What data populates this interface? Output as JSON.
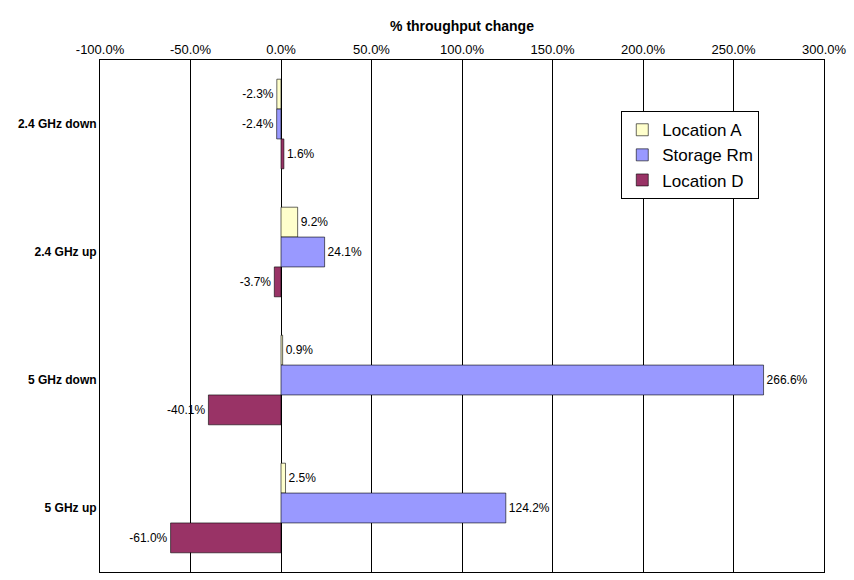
{
  "chart_data": {
    "type": "bar",
    "orientation": "horizontal",
    "xlabel": "% throughput change",
    "categories": [
      "2.4 GHz down",
      "2.4 GHz up",
      "5 GHz down",
      "5 GHz up"
    ],
    "series": [
      {
        "name": "Location A",
        "color": "#ffffcc",
        "values": [
          -2.3,
          9.2,
          0.9,
          2.5
        ],
        "value_labels": [
          "-2.3%",
          "9.2%",
          "0.9%",
          "2.5%"
        ]
      },
      {
        "name": "Storage Rm",
        "color": "#9999ff",
        "values": [
          -2.4,
          24.1,
          266.6,
          124.2
        ],
        "value_labels": [
          "-2.4%",
          "24.1%",
          "266.6%",
          "124.2%"
        ]
      },
      {
        "name": "Location D",
        "color": "#993366",
        "values": [
          1.6,
          -3.7,
          -40.1,
          -61.0
        ],
        "value_labels": [
          "1.6%",
          "-3.7%",
          "-40.1%",
          "-61.0%"
        ]
      }
    ],
    "xlim": [
      -100,
      300
    ],
    "xticks": [
      {
        "value": -100,
        "label": "-100.0%"
      },
      {
        "value": -50,
        "label": "-50.0%"
      },
      {
        "value": 0,
        "label": "0.0%"
      },
      {
        "value": 50,
        "label": "50.0%"
      },
      {
        "value": 100,
        "label": "100.0%"
      },
      {
        "value": 150,
        "label": "150.0%"
      },
      {
        "value": 200,
        "label": "200.0%"
      },
      {
        "value": 250,
        "label": "250.0%"
      },
      {
        "value": 300,
        "label": "300.0%"
      }
    ],
    "grid": true,
    "legend": "upper right",
    "data_labels": true
  }
}
